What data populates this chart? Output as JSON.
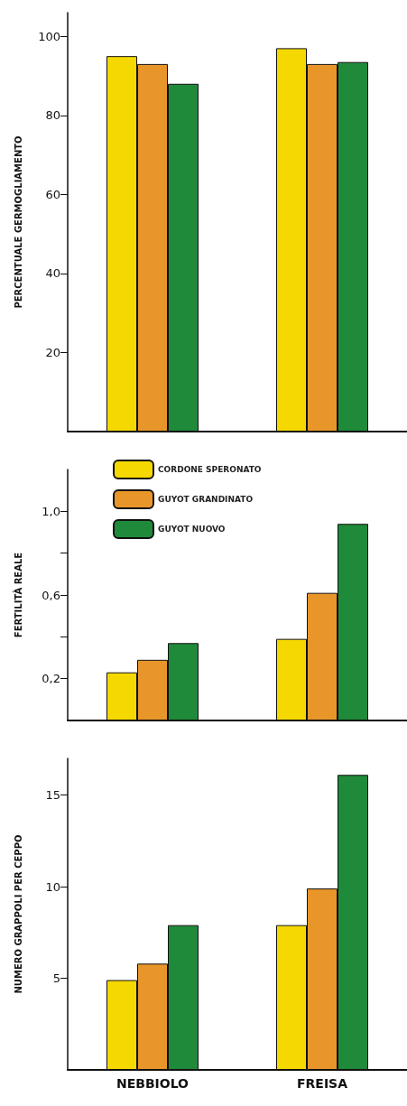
{
  "chart_data": [
    {
      "type": "bar",
      "ylabel": "PERCENTUALE GERMOGLIAMENTO",
      "categories": [
        null,
        null
      ],
      "series": [
        {
          "color": "#f5d800",
          "values": [
            95,
            97
          ]
        },
        {
          "color": "#e8962a",
          "values": [
            93,
            93
          ]
        },
        {
          "color": "#1f8a3a",
          "values": [
            88,
            93.5
          ]
        }
      ],
      "ylim": [
        0,
        106
      ],
      "yticks": [
        20,
        40,
        60,
        80,
        100
      ],
      "grid": false,
      "legend": false,
      "tick_labels": "y"
    },
    {
      "type": "bar",
      "ylabel": "FERTILITÀ REALE",
      "categories": [
        null,
        null
      ],
      "series": [
        {
          "name": "CORDONE SPERONATO",
          "color": "#f5d800",
          "values": [
            0.23,
            0.39
          ]
        },
        {
          "name": "GUYOT GRANDINATO",
          "color": "#e8962a",
          "values": [
            0.29,
            0.61
          ]
        },
        {
          "name": "GUYOT NUOVO",
          "color": "#1f8a3a",
          "values": [
            0.37,
            0.94
          ]
        }
      ],
      "ylim": [
        0,
        1.2
      ],
      "yticks": [
        {
          "value": 0.2,
          "label": "0,2"
        },
        {
          "value": 0.4,
          "label": null
        },
        {
          "value": 0.6,
          "label": "0,6"
        },
        {
          "value": 0.8,
          "label": null
        },
        {
          "value": 1.0,
          "label": "1,0"
        }
      ],
      "grid": false,
      "legend": "top left",
      "tick_labels": "y"
    },
    {
      "type": "bar",
      "ylabel": "NUMERO GRAPPOLI PER CEPPO",
      "categories": [
        "NEBBIOLO",
        "FREISA"
      ],
      "series": [
        {
          "color": "#f5d800",
          "values": [
            4.9,
            7.9
          ]
        },
        {
          "color": "#e8962a",
          "values": [
            5.8,
            9.9
          ]
        },
        {
          "color": "#1f8a3a",
          "values": [
            7.9,
            16.1
          ]
        }
      ],
      "ylim": [
        0,
        17
      ],
      "yticks": [
        5,
        10,
        15
      ],
      "grid": false,
      "legend": false
    }
  ]
}
